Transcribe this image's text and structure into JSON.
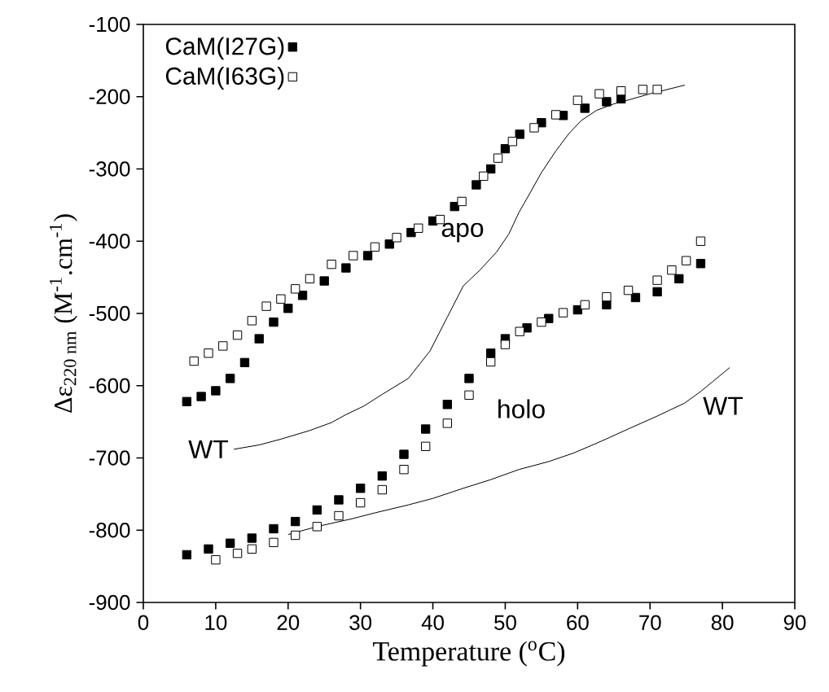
{
  "chart_data": {
    "type": "scatter",
    "xlabel": "Temperature  ($^{o}$C)",
    "ylabel": "Δε$_{220 nm}$  (M$^{-1}$.cm$^{-1}$)",
    "xlim": [
      0,
      90
    ],
    "ylim": [
      -900,
      -100
    ],
    "xticks": [
      0,
      10,
      20,
      30,
      40,
      50,
      60,
      70,
      80,
      90
    ],
    "yticks": [
      -900,
      -800,
      -700,
      -600,
      -500,
      -400,
      -300,
      -200,
      -100
    ],
    "grid": false,
    "legend": "top left",
    "marker": "square",
    "series": [
      {
        "name": "CaM(I27G)",
        "color": "#000000",
        "x": [
          6,
          8,
          10,
          12,
          14,
          16,
          18,
          20,
          22,
          25,
          28,
          31,
          34,
          37,
          40,
          43,
          46,
          48,
          50,
          52,
          55,
          58,
          61,
          64,
          66
        ],
        "values": [
          -622,
          -615,
          -607,
          -590,
          -568,
          -535,
          -512,
          -493,
          -475,
          -455,
          -437,
          -420,
          -404,
          -388,
          -372,
          -352,
          -322,
          -300,
          -272,
          -252,
          -236,
          -226,
          -216,
          -207,
          -203
        ]
      },
      {
        "name": "CaM(I63G)",
        "color": "#ffffff",
        "x": [
          7,
          9,
          11,
          13,
          15,
          17,
          19,
          21,
          23,
          26,
          29,
          32,
          35,
          38,
          41,
          44,
          47,
          49,
          51,
          54,
          57,
          60,
          63,
          66,
          69,
          71
        ],
        "values": [
          -566,
          -555,
          -545,
          -530,
          -510,
          -490,
          -480,
          -466,
          -452,
          -432,
          -420,
          -408,
          -395,
          -382,
          -370,
          -345,
          -310,
          -285,
          -262,
          -243,
          -225,
          -205,
          -196,
          -192,
          -190,
          -190
        ]
      },
      {
        "color": "#000000",
        "x": [
          6,
          9,
          12,
          15,
          18,
          21,
          24,
          27,
          30,
          33,
          36,
          39,
          42,
          45,
          48,
          50,
          53,
          56,
          60,
          64,
          68,
          71,
          74,
          77
        ],
        "values": [
          -834,
          -826,
          -818,
          -811,
          -798,
          -788,
          -772,
          -758,
          -742,
          -725,
          -695,
          -660,
          -626,
          -590,
          -555,
          -535,
          -520,
          -507,
          -495,
          -488,
          -478,
          -470,
          -452,
          -431
        ]
      },
      {
        "color": "#ffffff",
        "x": [
          10,
          13,
          15,
          18,
          21,
          24,
          27,
          30,
          33,
          36,
          39,
          42,
          45,
          48,
          50,
          52,
          55,
          58,
          61,
          64,
          67,
          71,
          73,
          75,
          77
        ],
        "values": [
          -841,
          -832,
          -826,
          -817,
          -807,
          -795,
          -780,
          -762,
          -744,
          -716,
          -684,
          -652,
          -613,
          -567,
          -543,
          -525,
          -512,
          -499,
          -488,
          -477,
          -468,
          -454,
          -440,
          -427,
          -400
        ]
      },
      {
        "type": "line",
        "marker": "none",
        "color": "#000000",
        "x": [
          12.5,
          16,
          19,
          23,
          26,
          28,
          30.5,
          33,
          36.6,
          39.6,
          42,
          44.2,
          46.5,
          48.8,
          50.5,
          51.9,
          53.5,
          55,
          57,
          58.8,
          60.5,
          62.6,
          65,
          67.2,
          70,
          72,
          74.8
        ],
        "values": [
          -688,
          -682,
          -674,
          -662,
          -651,
          -640,
          -628,
          -612,
          -590,
          -552,
          -505,
          -462,
          -440,
          -415,
          -390,
          -360,
          -332,
          -305,
          -275,
          -251,
          -233,
          -219,
          -210,
          -204,
          -196,
          -191,
          -184
        ]
      },
      {
        "type": "line",
        "marker": "none",
        "color": "#000000",
        "x": [
          20,
          24,
          28.9,
          32,
          36.6,
          40,
          44.2,
          48,
          51.9,
          56,
          59.5,
          63,
          67.2,
          71,
          74.8,
          77,
          78.7,
          81
        ],
        "values": [
          -806,
          -795,
          -784,
          -776,
          -765,
          -756,
          -742,
          -730,
          -716,
          -705,
          -693,
          -678,
          -659,
          -642,
          -624,
          -608,
          -594,
          -575
        ]
      }
    ],
    "annotations": [
      "apo",
      "holo",
      "WT",
      "WT"
    ]
  }
}
